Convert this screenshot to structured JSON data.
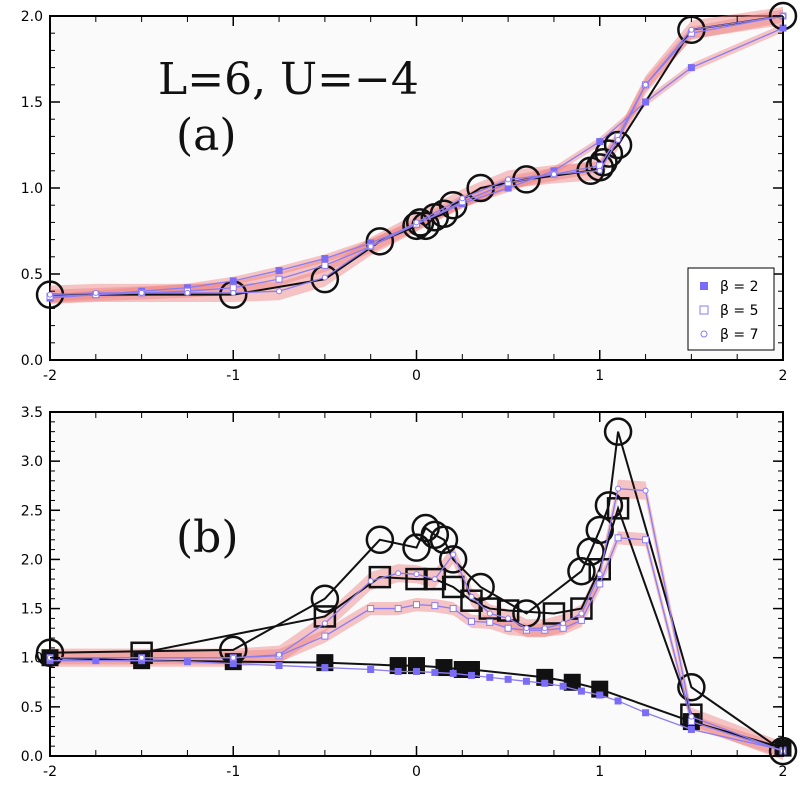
{
  "chart_data": [
    {
      "panel": "a",
      "type": "line",
      "title": "",
      "annotations": [
        "L=6,  U=−4",
        "(a)"
      ],
      "xlim": [
        -2,
        2
      ],
      "ylim": [
        0,
        2.0
      ],
      "xticks": [
        "-2",
        "-1",
        "0",
        "1",
        "2"
      ],
      "yticks": [
        "0.0",
        "0.5",
        "1.0",
        "1.5",
        "2.0"
      ],
      "legend": {
        "placement": "bottom-right",
        "entries": [
          "β = 2",
          "β = 5",
          "β = 7"
        ]
      },
      "reference_series": [
        {
          "name": "circles",
          "marker": "circle-large",
          "x": [
            -2.0,
            -1.0,
            -0.5,
            -0.2,
            0.0,
            0.02,
            0.05,
            0.1,
            0.15,
            0.2,
            0.35,
            0.6,
            0.95,
            1.0,
            1.02,
            1.05,
            1.1,
            1.5,
            2.0
          ],
          "y": [
            0.38,
            0.38,
            0.47,
            0.69,
            0.78,
            0.8,
            0.78,
            0.83,
            0.85,
            0.9,
            1.0,
            1.05,
            1.1,
            1.12,
            1.15,
            1.2,
            1.25,
            1.92,
            2.0
          ]
        }
      ],
      "series": [
        {
          "name": "β = 2",
          "marker": "filled-square",
          "band": true,
          "x": [
            -2.0,
            -1.75,
            -1.5,
            -1.25,
            -1.0,
            -0.75,
            -0.5,
            -0.25,
            0.0,
            0.25,
            0.5,
            0.75,
            1.0,
            1.25,
            1.5,
            2.0
          ],
          "y": [
            0.36,
            0.38,
            0.4,
            0.42,
            0.46,
            0.52,
            0.59,
            0.68,
            0.79,
            0.91,
            1.0,
            1.1,
            1.27,
            1.5,
            1.7,
            1.93
          ]
        },
        {
          "name": "β = 5",
          "marker": "open-square",
          "band": true,
          "x": [
            -2.0,
            -1.75,
            -1.5,
            -1.25,
            -1.0,
            -0.75,
            -0.5,
            -0.25,
            0.0,
            0.25,
            0.5,
            0.75,
            1.0,
            1.1,
            1.25,
            1.5,
            2.0
          ],
          "y": [
            0.37,
            0.38,
            0.39,
            0.4,
            0.42,
            0.47,
            0.55,
            0.66,
            0.79,
            0.92,
            1.03,
            1.08,
            1.13,
            1.3,
            1.6,
            1.9,
            2.0
          ]
        },
        {
          "name": "β = 7",
          "marker": "open-circle",
          "band": true,
          "x": [
            -2.0,
            -1.75,
            -1.5,
            -1.25,
            -1.0,
            -0.75,
            -0.5,
            -0.25,
            0.0,
            0.25,
            0.5,
            0.75,
            1.0,
            1.1,
            1.25,
            1.5,
            2.0
          ],
          "y": [
            0.38,
            0.39,
            0.39,
            0.39,
            0.39,
            0.4,
            0.48,
            0.66,
            0.8,
            0.94,
            1.05,
            1.08,
            1.1,
            1.28,
            1.6,
            1.92,
            2.0
          ]
        }
      ]
    },
    {
      "panel": "b",
      "type": "line",
      "title": "",
      "annotations": [
        "(b)"
      ],
      "xlim": [
        -2,
        2
      ],
      "ylim": [
        0,
        3.5
      ],
      "xticks": [
        "-2",
        "-1",
        "0",
        "1",
        "2"
      ],
      "yticks": [
        "0.0",
        "0.5",
        "1.0",
        "1.5",
        "2.0",
        "2.5",
        "3.0",
        "3.5"
      ],
      "reference_series": [
        {
          "name": "circles",
          "marker": "circle-large",
          "x": [
            -2.0,
            -1.0,
            -0.5,
            -0.2,
            0.0,
            0.05,
            0.1,
            0.15,
            0.2,
            0.35,
            0.6,
            0.9,
            0.95,
            1.0,
            1.05,
            1.1,
            1.5,
            2.0
          ],
          "y": [
            1.05,
            1.08,
            1.6,
            2.2,
            2.12,
            2.32,
            2.25,
            2.2,
            2.0,
            1.72,
            1.45,
            1.88,
            2.08,
            2.3,
            2.55,
            3.3,
            0.7,
            0.05
          ]
        },
        {
          "name": "squares",
          "marker": "open-square-large",
          "x": [
            -1.5,
            -0.5,
            -0.2,
            0.0,
            0.1,
            0.2,
            0.3,
            0.4,
            0.5,
            0.75,
            0.9,
            1.0,
            1.1,
            1.5
          ],
          "y": [
            1.05,
            1.42,
            1.82,
            1.8,
            1.8,
            1.72,
            1.58,
            1.5,
            1.48,
            1.45,
            1.5,
            1.9,
            2.52,
            0.42
          ]
        },
        {
          "name": "filled squares",
          "marker": "filled-square-large",
          "x": [
            -2.0,
            -1.5,
            -1.0,
            -0.5,
            -0.1,
            0.0,
            0.15,
            0.25,
            0.3,
            0.7,
            0.85,
            1.0,
            1.5,
            2.0
          ],
          "y": [
            1.0,
            0.97,
            0.96,
            0.95,
            0.92,
            0.92,
            0.9,
            0.88,
            0.88,
            0.8,
            0.75,
            0.68,
            0.35,
            0.08
          ]
        }
      ],
      "series": [
        {
          "name": "β = 2",
          "marker": "filled-square",
          "band": false,
          "x": [
            -2.0,
            -1.75,
            -1.5,
            -1.25,
            -1.0,
            -0.75,
            -0.5,
            -0.25,
            -0.1,
            0.0,
            0.1,
            0.2,
            0.3,
            0.4,
            0.5,
            0.6,
            0.7,
            0.8,
            0.9,
            1.0,
            1.1,
            1.25,
            1.5,
            2.0
          ],
          "y": [
            0.97,
            0.97,
            0.97,
            0.96,
            0.94,
            0.92,
            0.9,
            0.88,
            0.86,
            0.86,
            0.85,
            0.84,
            0.82,
            0.8,
            0.78,
            0.76,
            0.74,
            0.71,
            0.66,
            0.62,
            0.56,
            0.44,
            0.27,
            0.06
          ]
        },
        {
          "name": "β = 5",
          "marker": "open-square",
          "band": true,
          "x": [
            -2.0,
            -1.5,
            -1.0,
            -0.75,
            -0.5,
            -0.25,
            -0.1,
            0.0,
            0.1,
            0.2,
            0.3,
            0.4,
            0.5,
            0.6,
            0.7,
            0.8,
            0.9,
            1.0,
            1.1,
            1.25,
            1.5,
            2.0
          ],
          "y": [
            1.0,
            1.0,
            1.0,
            1.02,
            1.22,
            1.5,
            1.5,
            1.54,
            1.53,
            1.5,
            1.37,
            1.36,
            1.3,
            1.28,
            1.28,
            1.3,
            1.38,
            1.75,
            2.22,
            2.2,
            0.35,
            0.05
          ]
        },
        {
          "name": "β = 7",
          "marker": "open-circle",
          "band": true,
          "x": [
            -2.0,
            -1.5,
            -1.0,
            -0.75,
            -0.5,
            -0.25,
            -0.1,
            0.0,
            0.1,
            0.2,
            0.3,
            0.4,
            0.5,
            0.6,
            0.7,
            0.8,
            0.9,
            1.0,
            1.1,
            1.25,
            1.5,
            2.0
          ],
          "y": [
            1.0,
            1.0,
            1.0,
            1.03,
            1.35,
            1.78,
            1.86,
            1.85,
            1.8,
            2.05,
            1.62,
            1.45,
            1.4,
            1.3,
            1.3,
            1.35,
            1.45,
            1.85,
            2.72,
            2.7,
            0.4,
            0.05
          ]
        }
      ]
    }
  ],
  "colors": {
    "series": "#8c7cf0",
    "marker_fill": "#7b6cf6",
    "band": "#f08080",
    "reference": "#111111"
  }
}
